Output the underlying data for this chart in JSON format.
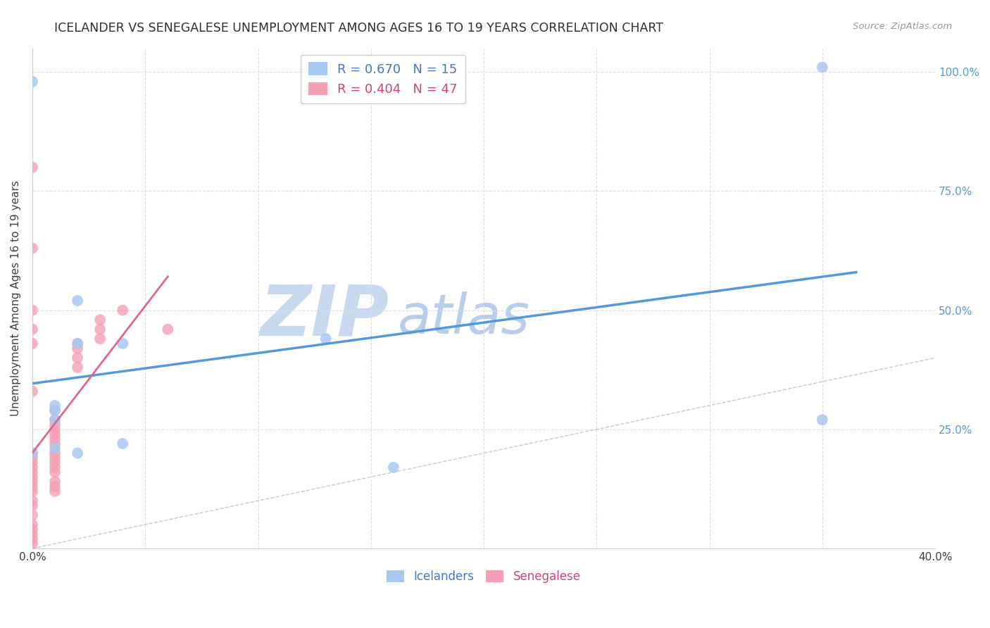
{
  "title": "ICELANDER VS SENEGALESE UNEMPLOYMENT AMONG AGES 16 TO 19 YEARS CORRELATION CHART",
  "source": "Source: ZipAtlas.com",
  "ylabel": "Unemployment Among Ages 16 to 19 years",
  "xlim": [
    0.0,
    0.4
  ],
  "ylim": [
    0.0,
    1.05
  ],
  "icelanders_x": [
    0.0,
    0.0,
    0.01,
    0.01,
    0.01,
    0.01,
    0.02,
    0.02,
    0.02,
    0.04,
    0.04,
    0.13,
    0.16,
    0.35,
    0.35
  ],
  "icelanders_y": [
    0.98,
    0.2,
    0.29,
    0.27,
    0.3,
    0.21,
    0.52,
    0.43,
    0.2,
    0.43,
    0.22,
    0.44,
    0.17,
    0.27,
    1.01
  ],
  "senegalese_x": [
    0.0,
    0.0,
    0.0,
    0.0,
    0.0,
    0.0,
    0.0,
    0.0,
    0.0,
    0.0,
    0.0,
    0.0,
    0.0,
    0.0,
    0.0,
    0.0,
    0.0,
    0.0,
    0.0,
    0.0,
    0.01,
    0.01,
    0.01,
    0.01,
    0.01,
    0.01,
    0.01,
    0.01,
    0.01,
    0.01,
    0.01,
    0.01,
    0.01,
    0.01,
    0.01,
    0.02,
    0.02,
    0.02,
    0.02,
    0.03,
    0.03,
    0.03,
    0.04,
    0.06,
    0.0,
    0.0,
    0.0
  ],
  "senegalese_y": [
    0.8,
    0.63,
    0.5,
    0.46,
    0.43,
    0.33,
    0.2,
    0.19,
    0.18,
    0.17,
    0.16,
    0.15,
    0.14,
    0.13,
    0.12,
    0.1,
    0.09,
    0.07,
    0.05,
    0.04,
    0.29,
    0.27,
    0.26,
    0.25,
    0.24,
    0.23,
    0.22,
    0.2,
    0.19,
    0.18,
    0.17,
    0.16,
    0.14,
    0.13,
    0.12,
    0.43,
    0.42,
    0.4,
    0.38,
    0.48,
    0.46,
    0.44,
    0.5,
    0.46,
    0.03,
    0.02,
    0.01
  ],
  "icelander_R": 0.67,
  "icelander_N": 15,
  "senegalese_R": 0.404,
  "senegalese_N": 47,
  "icelander_color": "#A8C8F0",
  "senegalese_color": "#F4A0B5",
  "icelander_line_color": "#5599DD",
  "senegalese_line_color": "#E06888",
  "diagonal_color": "#C8C8C8",
  "watermark_ZIP_color": "#C8D8EE",
  "watermark_atlas_color": "#B8CDE8",
  "background_color": "#FFFFFF",
  "grid_color": "#DEDEDE",
  "title_color": "#303030",
  "axis_label_color": "#404040",
  "right_tick_color": "#5599DD",
  "legend_blue_text": "#4477CC",
  "legend_pink_text": "#CC4477"
}
